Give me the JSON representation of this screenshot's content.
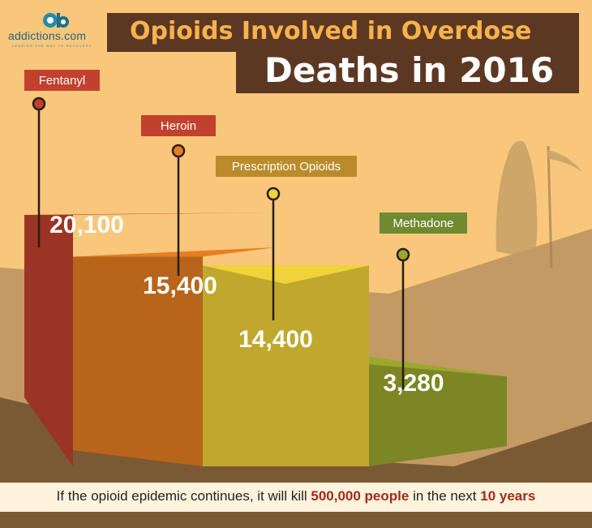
{
  "logo": {
    "name": "addictions.com",
    "tagline": "LEADING THE WAY TO RECOVERY"
  },
  "title": {
    "line1": "Opioids Involved in Overdose",
    "line2": "Deaths in 2016"
  },
  "colors": {
    "background": "#f8c77c",
    "title_box": "#5c3823",
    "fentanyl": "#c2412e",
    "heroin": "#e67e22",
    "prescription": "#f0d23a",
    "methadone": "#9ba82e"
  },
  "chart_data": {
    "type": "bar",
    "title": "Opioids Involved in Overdose Deaths in 2016",
    "categories": [
      "Fentanyl",
      "Heroin",
      "Prescription Opioids",
      "Methadone"
    ],
    "values": [
      20100,
      15400,
      14400,
      3280
    ],
    "value_labels": [
      "20,100",
      "15,400",
      "14,400",
      "3,280"
    ]
  },
  "footer": {
    "text_before": "If the opioid epidemic continues, it will kill ",
    "highlight1": "500,000 people",
    "text_middle": " in the next ",
    "highlight2": "10 years"
  }
}
